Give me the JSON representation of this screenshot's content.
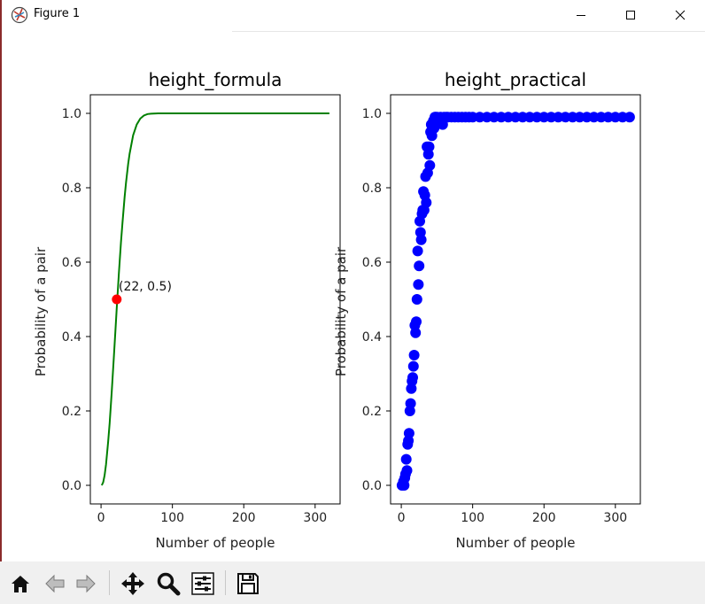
{
  "window": {
    "title": "Figure 1",
    "controls": [
      "minimize",
      "maximize",
      "close"
    ]
  },
  "toolbar": {
    "buttons": [
      "home-icon",
      "back-arrow-icon",
      "forward-arrow-icon",
      "pan-icon",
      "zoom-icon",
      "configure-subplots-icon",
      "save-icon"
    ]
  },
  "chart_data": [
    {
      "type": "line",
      "title": "height_formula",
      "xlabel": "Number of people",
      "ylabel": "Probability of a pair",
      "xlim": [
        -15,
        335
      ],
      "ylim": [
        -0.05,
        1.05
      ],
      "xticks": [
        0,
        100,
        200,
        300
      ],
      "xtick_labels": [
        "0",
        "100",
        "200",
        "300"
      ],
      "yticks": [
        0.0,
        0.2,
        0.4,
        0.6,
        0.8,
        1.0
      ],
      "ytick_labels": [
        "0.0",
        "0.2",
        "0.4",
        "0.6",
        "0.8",
        "1.0"
      ],
      "grid": false,
      "series": [
        {
          "color": "#008000",
          "x": [
            1,
            3,
            5,
            7,
            10,
            12,
            15,
            18,
            20,
            22,
            25,
            28,
            30,
            33,
            35,
            38,
            40,
            45,
            50,
            55,
            60,
            65,
            70,
            80,
            100,
            150,
            200,
            250,
            300,
            320
          ],
          "y": [
            0.0,
            0.008,
            0.027,
            0.056,
            0.117,
            0.167,
            0.253,
            0.347,
            0.411,
            0.476,
            0.569,
            0.654,
            0.706,
            0.775,
            0.814,
            0.864,
            0.891,
            0.941,
            0.97,
            0.986,
            0.994,
            0.998,
            0.999,
            1.0,
            1.0,
            1.0,
            1.0,
            1.0,
            1.0,
            1.0
          ]
        }
      ],
      "marker": {
        "x": 22,
        "y": 0.5,
        "color": "#ff0000"
      },
      "annotation": {
        "text": "(22, 0.5)",
        "x": 22,
        "y": 0.5
      }
    },
    {
      "type": "scatter",
      "title": "height_practical",
      "xlabel": "Number of people",
      "ylabel": "Probability of a pair",
      "xlim": [
        -15,
        335
      ],
      "ylim": [
        -0.05,
        1.05
      ],
      "xticks": [
        0,
        100,
        200,
        300
      ],
      "xtick_labels": [
        "0",
        "100",
        "200",
        "300"
      ],
      "yticks": [
        0.0,
        0.2,
        0.4,
        0.6,
        0.8,
        1.0
      ],
      "ytick_labels": [
        "0.0",
        "0.2",
        "0.4",
        "0.6",
        "0.8",
        "1.0"
      ],
      "grid": false,
      "series": [
        {
          "color": "#0000ff",
          "x": [
            1,
            2,
            3,
            4,
            5,
            6,
            7,
            8,
            9,
            10,
            11,
            12,
            13,
            14,
            15,
            16,
            17,
            18,
            19,
            20,
            21,
            22,
            23,
            24,
            25,
            26,
            27,
            28,
            29,
            30,
            31,
            32,
            33,
            34,
            35,
            36,
            37,
            38,
            39,
            40,
            41,
            42,
            43,
            44,
            45,
            46,
            47,
            48,
            49,
            50,
            52,
            55,
            58,
            60,
            63,
            65,
            70,
            75,
            80,
            85,
            90,
            95,
            100,
            110,
            120,
            130,
            140,
            150,
            160,
            170,
            180,
            190,
            200,
            210,
            220,
            230,
            240,
            250,
            260,
            270,
            280,
            290,
            300,
            310,
            320
          ],
          "y": [
            0.0,
            0.0,
            0.01,
            0.0,
            0.02,
            0.03,
            0.07,
            0.04,
            0.11,
            0.12,
            0.14,
            0.2,
            0.22,
            0.26,
            0.28,
            0.29,
            0.32,
            0.35,
            0.43,
            0.41,
            0.44,
            0.5,
            0.63,
            0.54,
            0.59,
            0.71,
            0.68,
            0.66,
            0.73,
            0.74,
            0.79,
            0.74,
            0.78,
            0.83,
            0.76,
            0.91,
            0.84,
            0.89,
            0.91,
            0.86,
            0.95,
            0.97,
            0.94,
            0.97,
            0.98,
            0.96,
            0.99,
            0.99,
            0.97,
            0.99,
            0.98,
            0.99,
            0.97,
            0.99,
            0.99,
            0.99,
            0.99,
            0.99,
            0.99,
            0.99,
            0.99,
            0.99,
            0.99,
            0.99,
            0.99,
            0.99,
            0.99,
            0.99,
            0.99,
            0.99,
            0.99,
            0.99,
            0.99,
            0.99,
            0.99,
            0.99,
            0.99,
            0.99,
            0.99,
            0.99,
            0.99,
            0.99,
            0.99,
            0.99,
            0.99
          ]
        }
      ]
    }
  ]
}
